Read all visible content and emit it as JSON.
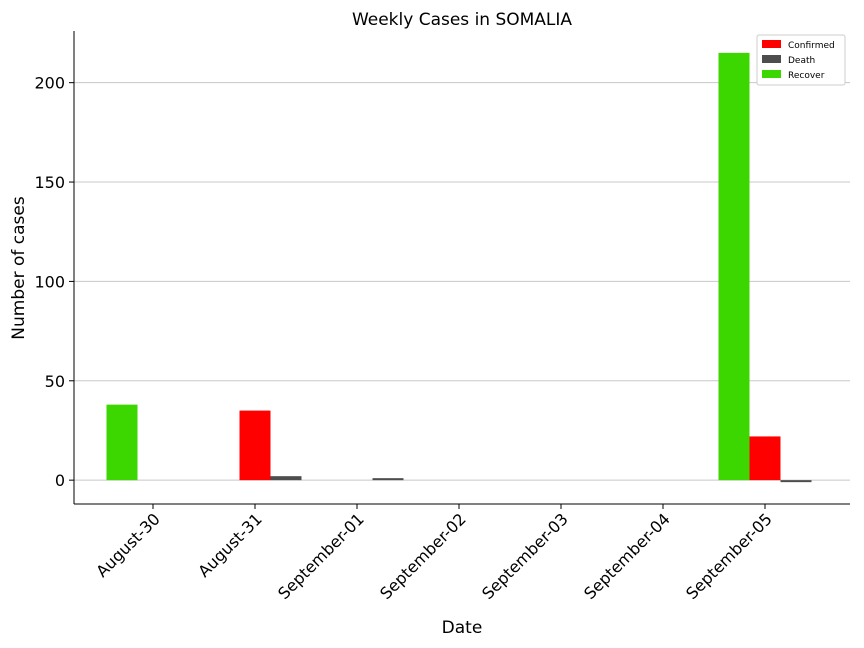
{
  "chart_data": {
    "type": "bar",
    "title": "Weekly Cases in SOMALIA",
    "xlabel": "Date",
    "ylabel": "Number of cases",
    "categories": [
      "August-30",
      "August-31",
      "September-01",
      "September-02",
      "September-03",
      "September-04",
      "September-05"
    ],
    "series": [
      {
        "name": "Recover",
        "color": "#3cd600",
        "values": [
          38,
          0,
          0,
          0,
          0,
          0,
          215
        ]
      },
      {
        "name": "Confirmed",
        "color": "#ff0000",
        "values": [
          0,
          35,
          0,
          0,
          0,
          0,
          22
        ]
      },
      {
        "name": "Death",
        "color": "#4d4d4d",
        "values": [
          0,
          2,
          1,
          0,
          0,
          0,
          -1
        ]
      }
    ],
    "legend_order": [
      "Confirmed",
      "Death",
      "Recover"
    ],
    "ylim": [
      -12,
      226
    ],
    "yticks": [
      0,
      50,
      100,
      150,
      200
    ],
    "grid": "horizontal",
    "legend_position": "top-right"
  }
}
